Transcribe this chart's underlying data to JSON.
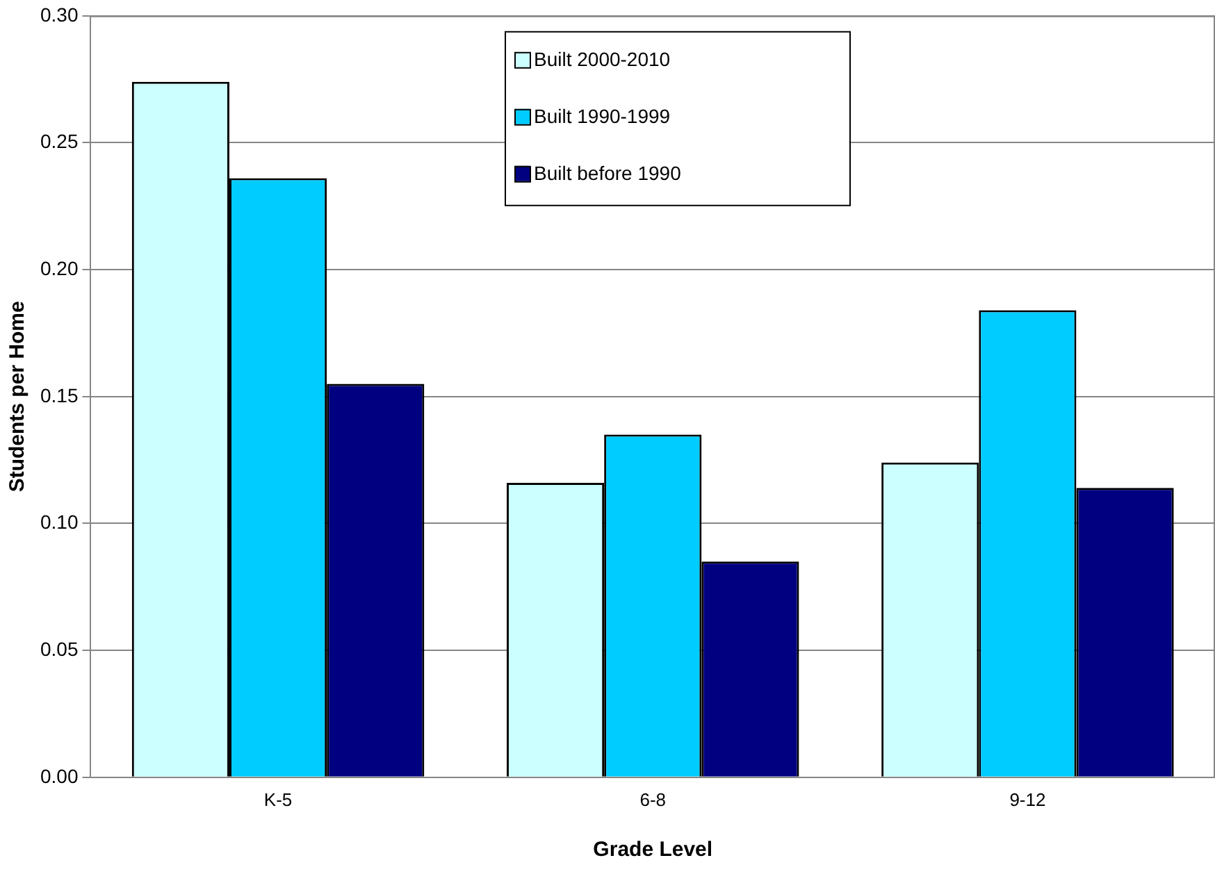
{
  "chart_data": {
    "type": "bar",
    "xlabel": "Grade Level",
    "ylabel": "Students per Home",
    "categories": [
      "K-5",
      "6-8",
      "9-12"
    ],
    "series": [
      {
        "name": "Built 2000-2010",
        "color": "#ccffff",
        "values": [
          0.274,
          0.116,
          0.124
        ]
      },
      {
        "name": "Built 1990-1999",
        "color": "#00ccff",
        "values": [
          0.236,
          0.135,
          0.184
        ]
      },
      {
        "name": "Built before 1990",
        "color": "#000080",
        "values": [
          0.155,
          0.085,
          0.114
        ]
      }
    ],
    "ylim": [
      0,
      0.3
    ],
    "yticks": [
      {
        "value": 0,
        "label": "0.00"
      },
      0.05,
      {
        "value": 0.1,
        "label": "0.10"
      },
      0.15,
      {
        "value": 0.2,
        "label": "0.20"
      },
      0.25,
      {
        "value": 0.3,
        "label": "0.30"
      }
    ],
    "grid": "y",
    "legend": "top"
  }
}
